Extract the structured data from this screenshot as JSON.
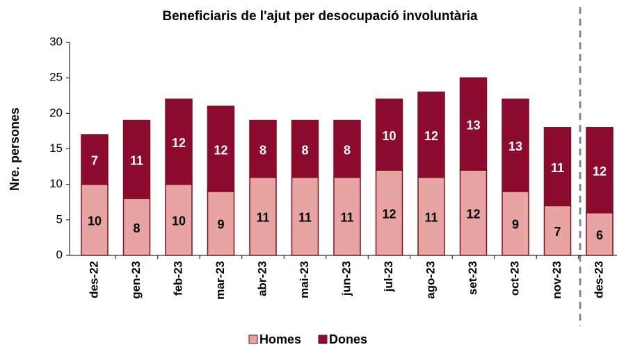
{
  "chart_data": {
    "type": "stacked_bar",
    "title": "Beneficiaris de l'ajut per desocupació  involuntària",
    "y_label": "Nre. persones",
    "categories": [
      "des-22",
      "gen-23",
      "feb-23",
      "mar-23",
      "abr-23",
      "mai-23",
      "jun-23",
      "jul-23",
      "ago-23",
      "set-23",
      "oct-23",
      "nov-23",
      "des-23"
    ],
    "series": [
      {
        "name": "Homes",
        "color": "#e8a3a3",
        "values": [
          10,
          8,
          10,
          9,
          11,
          11,
          11,
          12,
          11,
          12,
          9,
          7,
          6
        ]
      },
      {
        "name": "Dones",
        "color": "#8c0b2e",
        "values": [
          7,
          11,
          12,
          12,
          8,
          8,
          8,
          10,
          12,
          13,
          13,
          11,
          12
        ]
      }
    ],
    "ylim": [
      0,
      30
    ],
    "yticks": [
      0,
      5,
      10,
      15,
      20,
      25,
      30
    ]
  }
}
